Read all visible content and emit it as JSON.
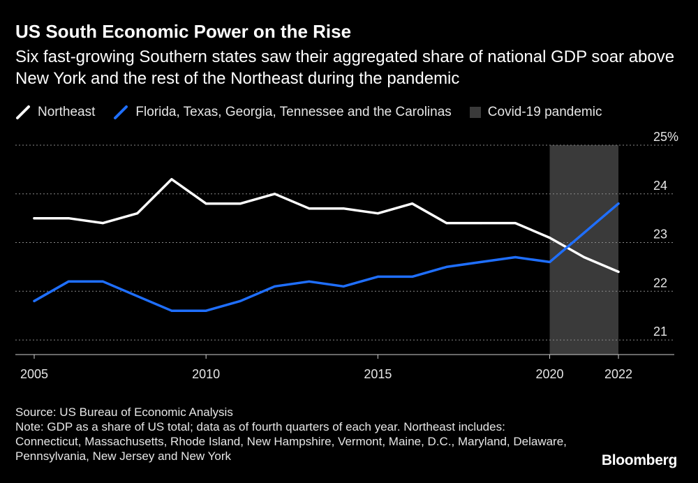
{
  "title": "US South Economic Power on the Rise",
  "subtitle": "Six fast-growing Southern states saw their aggregated share of national GDP soar above New York and the rest of the Northeast during the pandemic",
  "legend": {
    "northeast": "Northeast",
    "south": "Florida, Texas, Georgia, Tennessee and the Carolinas",
    "covid": "Covid-19 pandemic"
  },
  "chart_data": {
    "type": "line",
    "x": [
      2005,
      2006,
      2007,
      2008,
      2009,
      2010,
      2011,
      2012,
      2013,
      2014,
      2015,
      2016,
      2017,
      2018,
      2019,
      2020,
      2021,
      2022
    ],
    "series": [
      {
        "name": "Northeast",
        "color": "#ffffff",
        "values": [
          23.5,
          23.5,
          23.4,
          23.6,
          24.3,
          23.8,
          23.8,
          24.0,
          23.7,
          23.7,
          23.6,
          23.8,
          23.4,
          23.4,
          23.4,
          23.1,
          22.7,
          22.4
        ]
      },
      {
        "name": "Florida, Texas, Georgia, Tennessee and the Carolinas",
        "color": "#1f6fff",
        "values": [
          21.8,
          22.2,
          22.2,
          21.9,
          21.6,
          21.6,
          21.8,
          22.1,
          22.2,
          22.1,
          22.3,
          22.3,
          22.5,
          22.6,
          22.7,
          22.6,
          23.2,
          23.8
        ]
      }
    ],
    "shaded_region": {
      "label": "Covid-19 pandemic",
      "from": 2020,
      "to": 2022
    },
    "xlim": [
      2005,
      2022
    ],
    "ylim": [
      20.7,
      25
    ],
    "y_ticks": [
      21,
      22,
      23,
      24,
      25
    ],
    "y_tick_labels": [
      "21",
      "22",
      "23",
      "24",
      "25%"
    ],
    "x_ticks": [
      2005,
      2010,
      2015,
      2020,
      2022
    ],
    "x_tick_labels": [
      "2005",
      "2010",
      "2015",
      "2020",
      "2022"
    ],
    "xlabel": "",
    "ylabel": "",
    "grid": true
  },
  "footer": {
    "source": "Source: US Bureau of Economic Analysis",
    "note": "Note: GDP as a share of US total; data as of fourth quarters of each year. Northeast includes: Connecticut, Massachusetts, Rhode Island, New Hampshire, Vermont, Maine, D.C., Maryland, Delaware, Pennsylvania, New Jersey and New York"
  },
  "brand": "Bloomberg"
}
